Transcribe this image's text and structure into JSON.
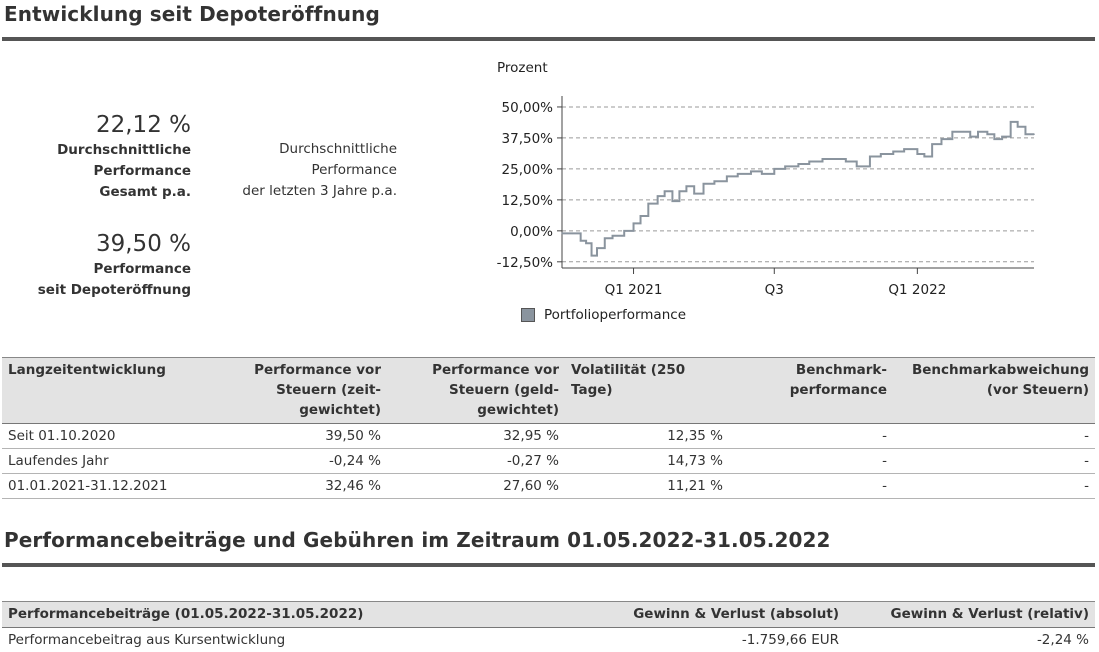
{
  "section1": {
    "title": "Entwicklung seit Depoteröffnung"
  },
  "stats": {
    "avg_total_value": "22,12 %",
    "avg_total_label": [
      "Durchschnittliche",
      "Performance",
      "Gesamt p.a."
    ],
    "since_open_value": "39,50 %",
    "since_open_label": [
      "Performance",
      "seit Depoteröffnung"
    ],
    "avg_3y_label": [
      "Durchschnittliche",
      "Performance",
      "der letzten 3 Jahre p.a."
    ]
  },
  "chart_data": {
    "type": "line",
    "ylabel": "Prozent",
    "y_ticks": [
      "50,00%",
      "37,50%",
      "25,00%",
      "12,50%",
      "0,00%",
      "-12,50%"
    ],
    "y_tick_values": [
      50,
      37.5,
      25,
      12.5,
      0,
      -12.5
    ],
    "ylim": [
      -15,
      52
    ],
    "x_ticks": [
      "Q1 2021",
      "Q3",
      "Q1 2022"
    ],
    "x_tick_dates": [
      "2021-01-01",
      "2021-07-01",
      "2022-01-01"
    ],
    "x_range": [
      "2020-10-01",
      "2022-05-31"
    ],
    "grid": true,
    "legend_position": "bottom",
    "series": [
      {
        "name": "Portfolioperformance",
        "color": "#8a949e",
        "x": [
          "2020-10-01",
          "2020-10-15",
          "2020-10-25",
          "2020-11-01",
          "2020-11-08",
          "2020-11-15",
          "2020-11-25",
          "2020-12-05",
          "2020-12-20",
          "2021-01-01",
          "2021-01-10",
          "2021-01-20",
          "2021-02-01",
          "2021-02-10",
          "2021-02-20",
          "2021-03-01",
          "2021-03-10",
          "2021-03-20",
          "2021-04-01",
          "2021-04-15",
          "2021-05-01",
          "2021-05-15",
          "2021-06-01",
          "2021-06-15",
          "2021-07-01",
          "2021-07-15",
          "2021-08-01",
          "2021-08-15",
          "2021-09-01",
          "2021-09-15",
          "2021-10-01",
          "2021-10-15",
          "2021-11-01",
          "2021-11-15",
          "2021-12-01",
          "2021-12-15",
          "2022-01-01",
          "2022-01-10",
          "2022-01-20",
          "2022-02-01",
          "2022-02-15",
          "2022-03-01",
          "2022-03-10",
          "2022-03-20",
          "2022-04-01",
          "2022-04-10",
          "2022-04-20",
          "2022-05-01",
          "2022-05-10",
          "2022-05-20",
          "2022-05-31"
        ],
        "values": [
          -1,
          -1,
          -4,
          -5,
          -10,
          -7,
          -3,
          -2,
          0,
          3,
          6,
          11,
          14,
          16,
          12,
          16,
          18,
          15,
          19,
          20,
          22,
          23,
          24,
          23,
          25,
          26,
          27,
          28,
          29,
          29,
          28,
          26,
          30,
          31,
          32,
          33,
          31,
          30,
          35,
          37,
          40,
          40,
          38,
          40,
          39,
          37,
          38,
          44,
          42,
          39,
          39
        ]
      }
    ]
  },
  "long_term_table": {
    "headers": [
      "Langzeitentwicklung",
      "Performance vor Steuern (zeit-gewichtet)",
      "Performance vor Steuern (geld-gewichtet)",
      "Volatilität (250 Tage)",
      "Benchmark-performance",
      "Benchmarkabweichung (vor Steuern)"
    ],
    "header_lines": [
      [
        "Langzeitentwicklung"
      ],
      [
        "Performance vor",
        "Steuern (zeit-",
        "gewichtet)"
      ],
      [
        "Performance vor",
        "Steuern (geld-",
        "gewichtet)"
      ],
      [
        "Volatilität (250 Tage)"
      ],
      [
        "Benchmark-",
        "performance"
      ],
      [
        "Benchmarkabweichung",
        "(vor Steuern)"
      ]
    ],
    "rows": [
      [
        "Seit 01.10.2020",
        "39,50 %",
        "32,95 %",
        "12,35 %",
        "-",
        "-"
      ],
      [
        "Laufendes Jahr",
        "-0,24 %",
        "-0,27 %",
        "14,73 %",
        "-",
        "-"
      ],
      [
        "01.01.2021-31.12.2021",
        "32,46 %",
        "27,60 %",
        "11,21 %",
        "-",
        "-"
      ]
    ]
  },
  "section2": {
    "title": "Performancebeiträge und Gebühren im Zeitraum 01.05.2022-31.05.2022"
  },
  "contrib_table": {
    "headers": [
      "Performancebeiträge (01.05.2022-31.05.2022)",
      "Gewinn & Verlust (absolut)",
      "Gewinn & Verlust (relativ)"
    ],
    "rows": [
      [
        "Performancebeitrag aus Kursentwicklung",
        "-1.759,66 EUR",
        "-2,24 %"
      ]
    ]
  }
}
